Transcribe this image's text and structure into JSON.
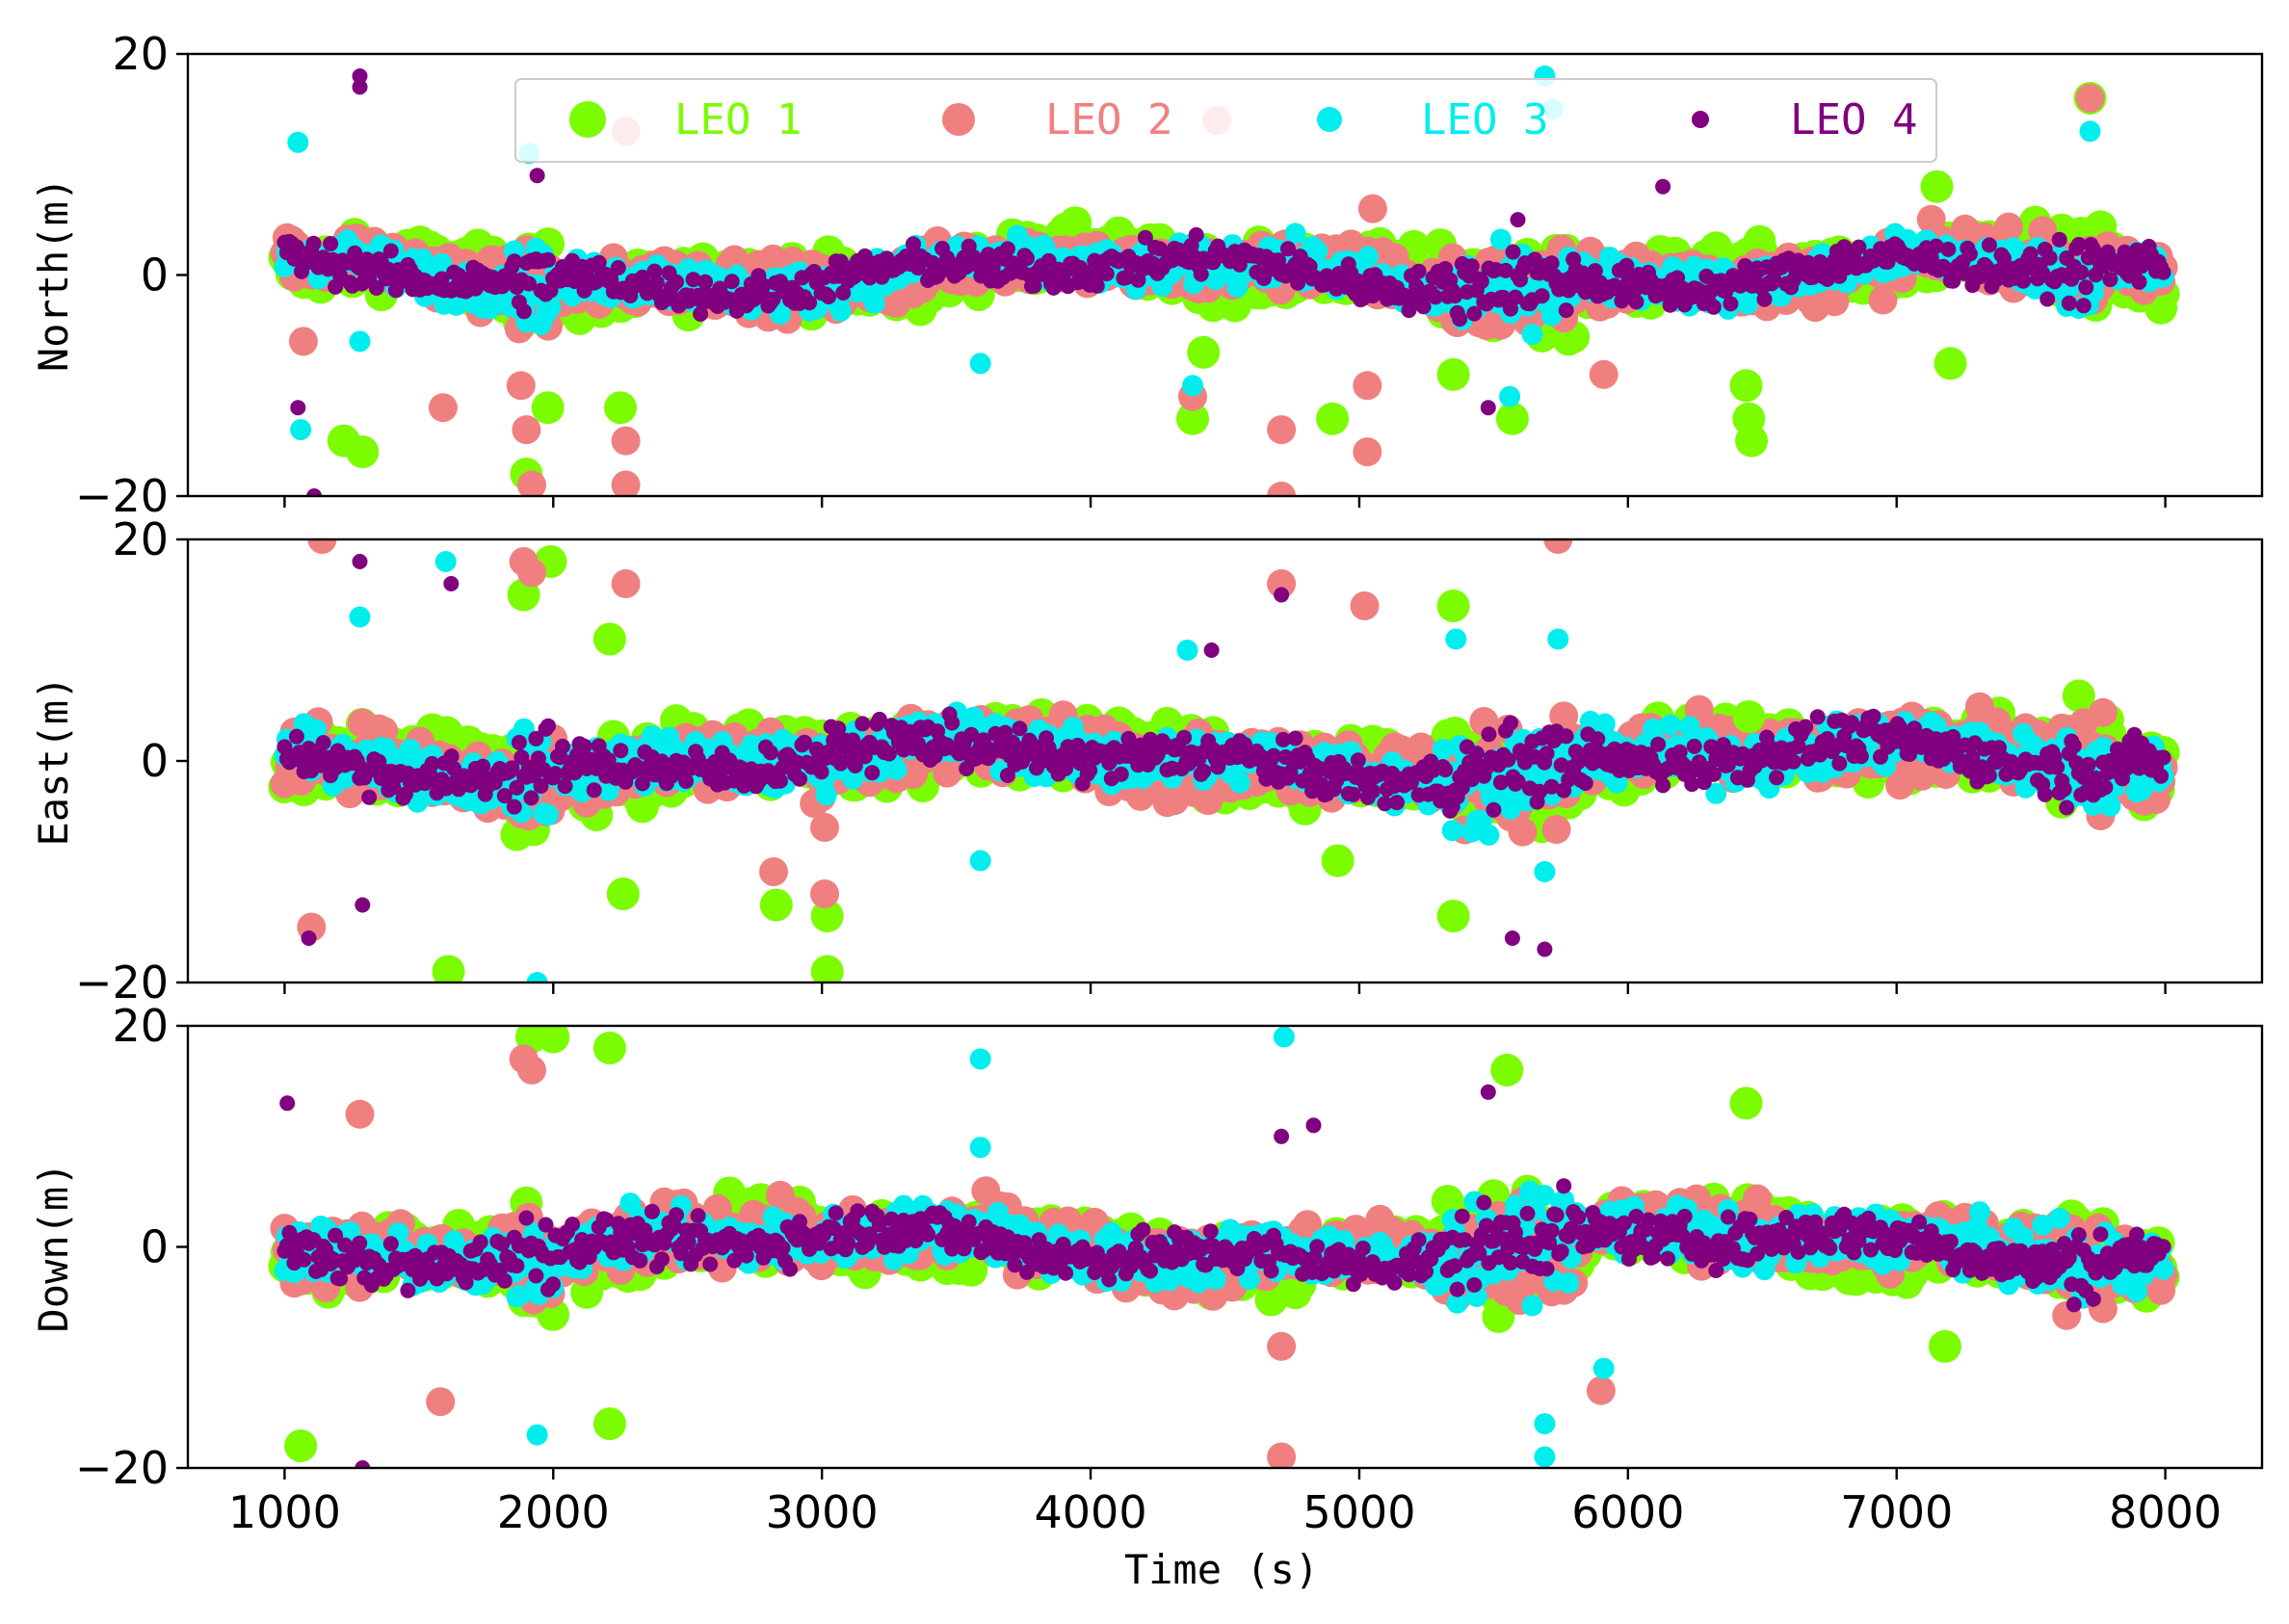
{
  "chart_data": [
    {
      "type": "scatter",
      "panel": "north",
      "ylabel": "North(m)",
      "xlim": [
        640,
        8360
      ],
      "ylim": [
        -20,
        20
      ],
      "yticks": [
        -20,
        0,
        20
      ],
      "xticks": [
        1000,
        2000,
        3000,
        4000,
        5000,
        6000,
        7000,
        8000
      ],
      "x_tick_labels_shown": false,
      "grid": false,
      "note": "Dense per-epoch positioning error samples; summarized as baseline noise plus outlier points",
      "series": [
        {
          "name": "LEO 1",
          "color": "#7cfc00",
          "noise_amplitude_m": 3.0
        },
        {
          "name": "LEO 2",
          "color": "#f08080",
          "noise_amplitude_m": 3.0
        },
        {
          "name": "LEO 3",
          "color": "#00eeee",
          "noise_amplitude_m": 2.5
        },
        {
          "name": "LEO 4",
          "color": "#800080",
          "noise_amplitude_m": 2.2
        }
      ],
      "outliers": [
        {
          "series": "LEO 1",
          "points": [
            [
              1220,
              -15
            ],
            [
              1290,
              -16
            ],
            [
              1900,
              -18
            ],
            [
              1980,
              -12
            ],
            [
              2250,
              -12
            ],
            [
              4380,
              -13
            ],
            [
              4420,
              -7
            ],
            [
              4900,
              -13
            ],
            [
              5350,
              -9
            ],
            [
              5570,
              -13
            ],
            [
              6440,
              -10
            ],
            [
              6450,
              -13
            ],
            [
              6460,
              -15
            ],
            [
              7150,
              8
            ],
            [
              7200,
              -8
            ],
            [
              7720,
              16
            ]
          ]
        },
        {
          "series": "LEO 2",
          "points": [
            [
              1070,
              -6
            ],
            [
              1590,
              -12
            ],
            [
              1880,
              -10
            ],
            [
              1900,
              -14
            ],
            [
              1920,
              -19
            ],
            [
              2270,
              13
            ],
            [
              2270,
              -15
            ],
            [
              2270,
              -19
            ],
            [
              4380,
              -11
            ],
            [
              4470,
              14
            ],
            [
              4710,
              -14
            ],
            [
              4710,
              -20
            ],
            [
              5030,
              -10
            ],
            [
              5030,
              -16
            ],
            [
              5050,
              6
            ],
            [
              5910,
              -9
            ],
            [
              7720,
              16
            ]
          ]
        },
        {
          "series": "LEO 3",
          "points": [
            [
              1050,
              12
            ],
            [
              1060,
              -14
            ],
            [
              1280,
              -6
            ],
            [
              1910,
              11
            ],
            [
              3590,
              -8
            ],
            [
              4380,
              -10
            ],
            [
              5560,
              -11
            ],
            [
              5690,
              18
            ],
            [
              5720,
              15
            ],
            [
              7720,
              13
            ]
          ]
        },
        {
          "series": "LEO 4",
          "points": [
            [
              1280,
              18
            ],
            [
              1280,
              17
            ],
            [
              1050,
              -12
            ],
            [
              1110,
              -20
            ],
            [
              1940,
              9
            ],
            [
              5480,
              -12
            ],
            [
              5590,
              5
            ],
            [
              6130,
              8
            ]
          ]
        }
      ]
    },
    {
      "type": "scatter",
      "panel": "east",
      "ylabel": "East(m)",
      "xlim": [
        640,
        8360
      ],
      "ylim": [
        -20,
        20
      ],
      "yticks": [
        -20,
        0,
        20
      ],
      "xticks": [
        1000,
        2000,
        3000,
        4000,
        5000,
        6000,
        7000,
        8000
      ],
      "x_tick_labels_shown": false,
      "grid": false,
      "note": "Dense per-epoch positioning error samples; summarized as baseline noise plus outlier points",
      "series": [
        {
          "name": "LEO 1",
          "color": "#7cfc00",
          "noise_amplitude_m": 3.5
        },
        {
          "name": "LEO 2",
          "color": "#f08080",
          "noise_amplitude_m": 3.5
        },
        {
          "name": "LEO 3",
          "color": "#00eeee",
          "noise_amplitude_m": 3.0
        },
        {
          "name": "LEO 4",
          "color": "#800080",
          "noise_amplitude_m": 2.6
        }
      ],
      "outliers": [
        {
          "series": "LEO 1",
          "points": [
            [
              1610,
              -19
            ],
            [
              1890,
              15
            ],
            [
              1990,
              18
            ],
            [
              2210,
              11
            ],
            [
              2260,
              -12
            ],
            [
              2830,
              -13
            ],
            [
              3020,
              -14
            ],
            [
              3020,
              -19
            ],
            [
              4920,
              -9
            ],
            [
              5350,
              14
            ],
            [
              5350,
              -14
            ],
            [
              6450,
              4
            ]
          ]
        },
        {
          "series": "LEO 2",
          "points": [
            [
              1100,
              -15
            ],
            [
              1140,
              20
            ],
            [
              1890,
              18
            ],
            [
              1920,
              17
            ],
            [
              2270,
              16
            ],
            [
              2820,
              -10
            ],
            [
              3010,
              -6
            ],
            [
              3010,
              -12
            ],
            [
              4710,
              16
            ],
            [
              5020,
              14
            ],
            [
              5740,
              20
            ]
          ]
        },
        {
          "series": "LEO 3",
          "points": [
            [
              1280,
              13
            ],
            [
              1600,
              18
            ],
            [
              1940,
              -20
            ],
            [
              3590,
              -9
            ],
            [
              4360,
              10
            ],
            [
              5360,
              11
            ],
            [
              5690,
              -10
            ],
            [
              5740,
              11
            ]
          ]
        },
        {
          "series": "LEO 4",
          "points": [
            [
              1280,
              18
            ],
            [
              1620,
              16
            ],
            [
              1090,
              -16
            ],
            [
              1290,
              -13
            ],
            [
              4710,
              15
            ],
            [
              4450,
              10
            ],
            [
              5570,
              -16
            ],
            [
              5690,
              -17
            ]
          ]
        }
      ]
    },
    {
      "type": "scatter",
      "panel": "down",
      "ylabel": "Down(m)",
      "xlabel": "Time (s)",
      "xlim": [
        640,
        8360
      ],
      "ylim": [
        -20,
        20
      ],
      "yticks": [
        -20,
        0,
        20
      ],
      "xticks": [
        1000,
        2000,
        3000,
        4000,
        5000,
        6000,
        7000,
        8000
      ],
      "x_tick_labels_shown": true,
      "grid": false,
      "note": "Dense per-epoch positioning error samples; summarized as baseline noise plus outlier points",
      "series": [
        {
          "name": "LEO 1",
          "color": "#7cfc00",
          "noise_amplitude_m": 3.5
        },
        {
          "name": "LEO 2",
          "color": "#f08080",
          "noise_amplitude_m": 3.5
        },
        {
          "name": "LEO 3",
          "color": "#00eeee",
          "noise_amplitude_m": 3.0
        },
        {
          "name": "LEO 4",
          "color": "#800080",
          "noise_amplitude_m": 2.6
        }
      ],
      "outliers": [
        {
          "series": "LEO 1",
          "points": [
            [
              1060,
              -18
            ],
            [
              1920,
              19
            ],
            [
              2000,
              19
            ],
            [
              2210,
              18
            ],
            [
              2210,
              -16
            ],
            [
              5550,
              16
            ],
            [
              6440,
              13
            ],
            [
              7180,
              -9
            ]
          ]
        },
        {
          "series": "LEO 2",
          "points": [
            [
              1280,
              12
            ],
            [
              1890,
              17
            ],
            [
              1920,
              16
            ],
            [
              4710,
              -9
            ],
            [
              4710,
              -19
            ],
            [
              5900,
              -13
            ],
            [
              1580,
              -14
            ]
          ]
        },
        {
          "series": "LEO 3",
          "points": [
            [
              3590,
              17
            ],
            [
              3590,
              9
            ],
            [
              4720,
              19
            ],
            [
              5690,
              -16
            ],
            [
              5690,
              -19
            ],
            [
              5910,
              -11
            ],
            [
              1940,
              -17
            ]
          ]
        },
        {
          "series": "LEO 4",
          "points": [
            [
              1010,
              13
            ],
            [
              4710,
              10
            ],
            [
              4830,
              11
            ],
            [
              5480,
              14
            ],
            [
              1290,
              -20
            ]
          ]
        }
      ]
    }
  ],
  "legend": {
    "entries": [
      {
        "label": "LEO 1",
        "color": "#7cfc00"
      },
      {
        "label": "LEO 2",
        "color": "#f08080"
      },
      {
        "label": "LEO 3",
        "color": "#00eeee"
      },
      {
        "label": "LEO 4",
        "color": "#800080"
      }
    ],
    "placement": "top-center inside first panel"
  }
}
